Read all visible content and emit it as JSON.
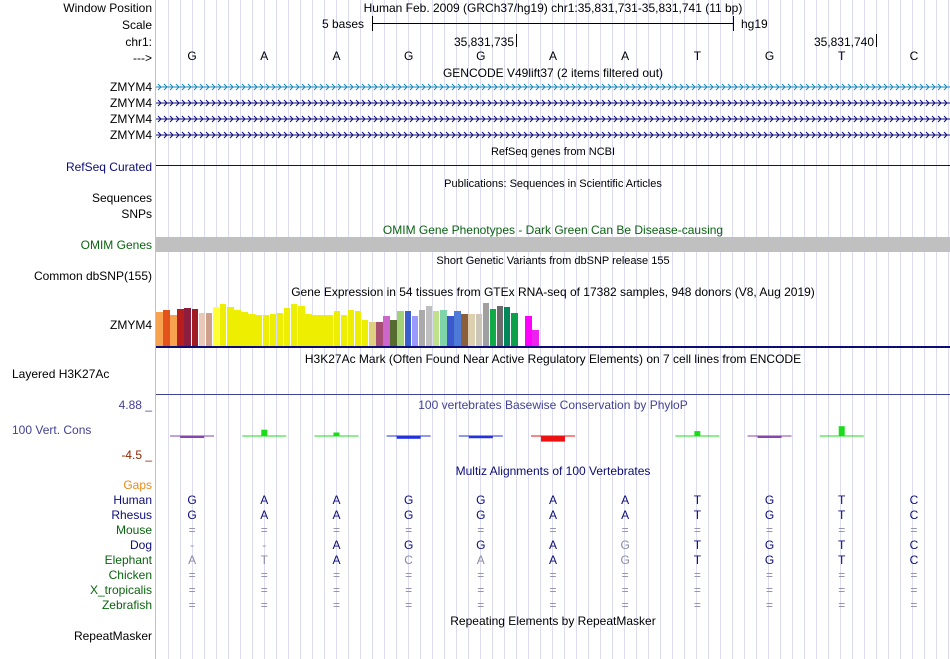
{
  "header": {
    "window_position_label": "Window Position",
    "window_position_text": "Human Feb. 2009 (GRCh37/hg19)   chr1:35,831,731-35,831,741 (11 bp)",
    "scale_label": "Scale",
    "scale_text": "5 bases",
    "scale_assembly": "hg19",
    "chrom_label": "chr1:",
    "coord_left": "35,831,735",
    "coord_right": "35,831,740",
    "strand_label": "--->"
  },
  "bases": [
    "G",
    "A",
    "A",
    "G",
    "G",
    "A",
    "A",
    "T",
    "G",
    "T",
    "C"
  ],
  "tracks": {
    "gencode": {
      "title": "GENCODE V49lift37 (2 items filtered out)",
      "items": [
        {
          "label": "ZMYM4",
          "color": "#1a88ba"
        },
        {
          "label": "ZMYM4",
          "color": "#0c0c78"
        },
        {
          "label": "ZMYM4",
          "color": "#0c0c78"
        },
        {
          "label": "ZMYM4",
          "color": "#0c0c78"
        }
      ]
    },
    "refseq": {
      "title": "RefSeq genes from NCBI",
      "label": "RefSeq Curated"
    },
    "publications": {
      "title": "Publications: Sequences in Scientific Articles",
      "label1": "Sequences",
      "label2": "SNPs"
    },
    "omim": {
      "title": "OMIM Gene Phenotypes - Dark Green Can Be Disease-causing",
      "label": "OMIM Genes"
    },
    "dbsnp": {
      "title": "Short Genetic Variants from dbSNP release 155",
      "label": "Common dbSNP(155)"
    },
    "gtex": {
      "title": "Gene Expression in 54 tissues from GTEx RNA-seq of 17382 samples, 948 donors (V8, Aug 2019)",
      "label": "ZMYM4",
      "values": [
        34,
        36,
        31,
        37,
        38,
        37,
        33,
        33,
        39,
        42,
        39,
        36,
        34,
        32,
        31,
        31,
        32,
        33,
        38,
        42,
        40,
        32,
        31,
        31,
        31,
        35,
        31,
        36,
        35,
        26,
        24,
        24,
        30,
        26,
        35,
        35,
        30,
        36,
        40,
        35,
        36,
        30,
        35,
        32,
        32,
        32,
        43,
        37,
        40,
        39,
        33,
        27,
        30,
        16
      ],
      "colors": [
        "#f7a24f",
        "#e4521b",
        "#f7a24f",
        "#b81d1d",
        "#8b1e3f",
        "#a01c24",
        "#e8c8b8",
        "#cea08c",
        "#ffff33",
        "#eeee00",
        "#eeee00",
        "#eeee00",
        "#eeee00",
        "#eeee00",
        "#eeee00",
        "#eeee00",
        "#eeee00",
        "#eeee00",
        "#eeee00",
        "#eeee00",
        "#eeee00",
        "#eeee00",
        "#eeee00",
        "#eeee00",
        "#eeee00",
        "#eeee00",
        "#eeee00",
        "#eeee00",
        "#eeee00",
        "#eeee00",
        "#ddd080",
        "#a84d73",
        "#cc66cc",
        "#556b2f",
        "#a3d177",
        "#3a5fcd",
        "#9999ff",
        "#aaaaaa",
        "#bfbfbf",
        "#c0e08c",
        "#7fd4aa",
        "#3c58cd",
        "#4e7ad8",
        "#8a5f3b",
        "#ddd0b0",
        "#ccc6b8",
        "#a0a0a0",
        "#10aa47",
        "#6b6b6b",
        "#00875a",
        "#0da04a",
        "#ffffff",
        "#ff00ff",
        "#ee22ee"
      ]
    },
    "h3k27ac": {
      "title": "H3K27Ac Mark (Often Found Near Active Regulatory Elements) on 7 cell lines from ENCODE",
      "label": "Layered H3K27Ac"
    },
    "conservation": {
      "title": "100 vertebrates Basewise Conservation by PhyloP",
      "label": "100 Vert. Cons",
      "max_label": "4.88 _",
      "min_label": "-4.5 _",
      "values": [
        -0.3,
        0.9,
        0.5,
        -1.0,
        -0.8,
        -2.0,
        0,
        0.7,
        -0.2,
        1.4,
        0
      ]
    },
    "multiz": {
      "title": "Multiz Alignments of 100 Vertebrates",
      "gaps_label": "Gaps",
      "gaps_color": "#e88a1a",
      "species": [
        {
          "name": "Human",
          "color": "#0c0c78",
          "bases": [
            "G",
            "A",
            "A",
            "G",
            "G",
            "A",
            "A",
            "T",
            "G",
            "T",
            "C"
          ]
        },
        {
          "name": "Rhesus",
          "color": "#0c0c78",
          "bases": [
            "G",
            "A",
            "A",
            "G",
            "G",
            "A",
            "A",
            "T",
            "G",
            "T",
            "C"
          ]
        },
        {
          "name": "Mouse",
          "color": "#0a6410",
          "bases": [
            "=",
            "=",
            "=",
            "=",
            "=",
            "=",
            "=",
            "=",
            "=",
            "=",
            "="
          ]
        },
        {
          "name": "Dog",
          "color": "#0c0c78",
          "bases": [
            "-",
            "-",
            "A",
            "G",
            "G",
            "A",
            "G",
            "T",
            "G",
            "T",
            "C"
          ]
        },
        {
          "name": "Elephant",
          "color": "#0a6410",
          "bases": [
            "A",
            "T",
            "A",
            "C",
            "A",
            "A",
            "G",
            "T",
            "G",
            "T",
            "C"
          ]
        },
        {
          "name": "Chicken",
          "color": "#0a6410",
          "bases": [
            "=",
            "=",
            "=",
            "=",
            "=",
            "=",
            "=",
            "=",
            "=",
            "=",
            "="
          ]
        },
        {
          "name": "X_tropicalis",
          "color": "#0a6410",
          "bases": [
            "=",
            "=",
            "=",
            "=",
            "=",
            "=",
            "=",
            "=",
            "=",
            "=",
            "="
          ]
        },
        {
          "name": "Zebrafish",
          "color": "#0a6410",
          "bases": [
            "=",
            "=",
            "=",
            "=",
            "=",
            "=",
            "=",
            "=",
            "=",
            "=",
            "="
          ]
        }
      ]
    },
    "repeatmasker": {
      "title": "Repeating Elements by RepeatMasker",
      "label": "RepeatMasker"
    }
  }
}
